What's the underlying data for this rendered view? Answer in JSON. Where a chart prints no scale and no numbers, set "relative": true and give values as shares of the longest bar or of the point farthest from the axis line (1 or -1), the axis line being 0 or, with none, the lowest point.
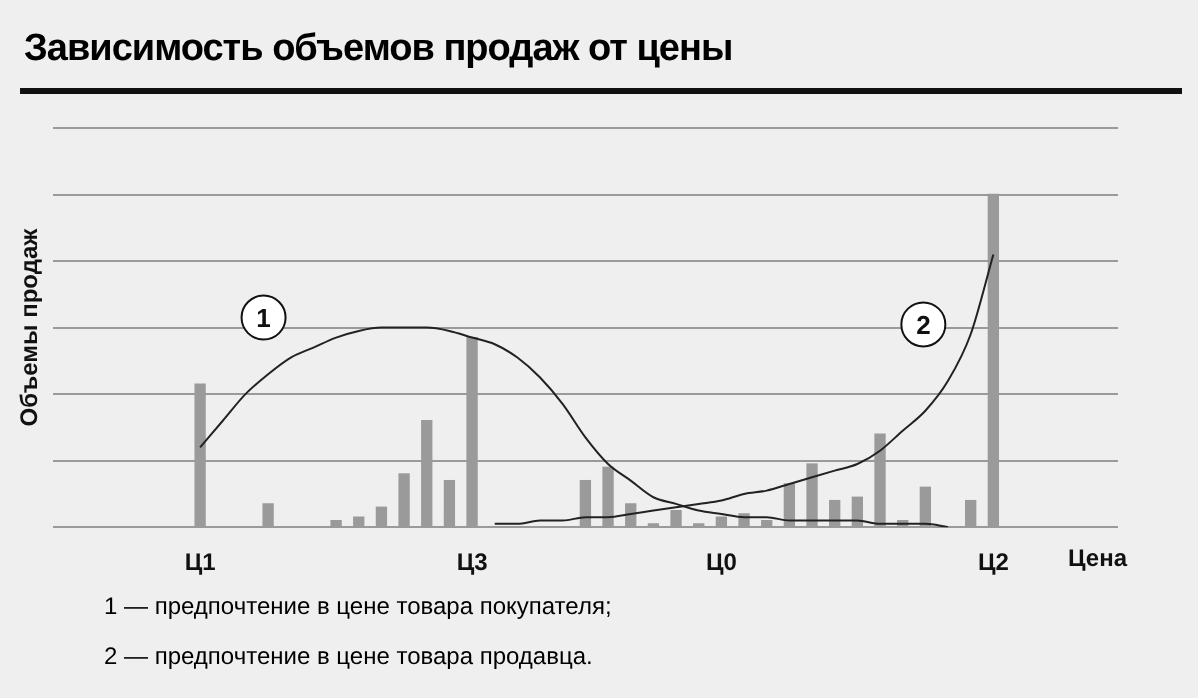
{
  "chart_data": {
    "type": "bar",
    "title": "Зависимость объемов продаж от цены",
    "xlabel": "Цена",
    "ylabel": "Объемы продаж",
    "relative": true,
    "grid": "y",
    "legend": false,
    "categories": [
      null,
      null,
      null,
      null,
      null,
      null,
      "Ц1",
      null,
      null,
      null,
      null,
      null,
      null,
      null,
      null,
      null,
      null,
      null,
      "Ц3",
      null,
      null,
      null,
      null,
      null,
      null,
      null,
      null,
      null,
      null,
      "Ц0",
      null,
      null,
      null,
      null,
      null,
      null,
      null,
      null,
      null,
      null,
      null,
      "Ц2",
      null,
      null,
      null,
      null,
      null
    ],
    "series": [
      {
        "color": "#9a9a9a",
        "values": [
          null,
          null,
          null,
          null,
          null,
          null,
          0.43,
          null,
          null,
          0.07,
          null,
          null,
          0.02,
          0.03,
          0.06,
          0.16,
          0.32,
          0.14,
          0.57,
          null,
          null,
          null,
          null,
          0.14,
          0.18,
          0.07,
          0.01,
          0.05,
          0.01,
          0.03,
          0.04,
          0.02,
          0.13,
          0.19,
          0.08,
          0.09,
          0.28,
          0.02,
          0.12,
          null,
          0.08,
          1,
          null,
          null,
          null,
          null,
          null
        ]
      },
      {
        "type": "line",
        "name": "1",
        "color": "#222222",
        "values": [
          null,
          null,
          null,
          null,
          null,
          null,
          0.24,
          0.32,
          0.4,
          0.46,
          0.51,
          0.54,
          0.57,
          0.59,
          0.6,
          0.6,
          0.6,
          0.59,
          0.57,
          0.55,
          0.51,
          0.45,
          0.37,
          0.27,
          0.19,
          0.14,
          0.09,
          0.07,
          0.05,
          0.04,
          0.03,
          0.03,
          0.02,
          0.02,
          0.02,
          0.02,
          0.01,
          0.01,
          0.01,
          0,
          null,
          null,
          null,
          null,
          null,
          null,
          null
        ]
      },
      {
        "type": "line",
        "name": "2",
        "color": "#222222",
        "values": [
          null,
          null,
          null,
          null,
          null,
          null,
          null,
          null,
          null,
          null,
          null,
          null,
          null,
          null,
          null,
          null,
          null,
          null,
          null,
          0.01,
          0.01,
          0.02,
          0.02,
          0.03,
          0.03,
          0.04,
          0.05,
          0.06,
          0.07,
          0.08,
          0.1,
          0.11,
          0.13,
          0.15,
          0.17,
          0.19,
          0.23,
          0.29,
          0.35,
          0.44,
          0.58,
          0.82,
          null,
          null,
          null,
          null,
          null
        ]
      }
    ],
    "annotations": [
      "1 — предпочтение в цене товара покупателя;",
      "2 — предпочтение в цене товара продавца."
    ]
  }
}
